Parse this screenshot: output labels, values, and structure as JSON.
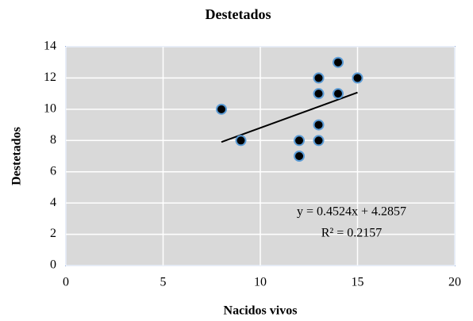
{
  "chart_data": {
    "type": "scatter",
    "title": "Destetados",
    "x_label": "Nacidos vivos",
    "y_label": "Destetados",
    "x": [
      8,
      9,
      12,
      12,
      13,
      13,
      13,
      13,
      14,
      14,
      15
    ],
    "y": [
      10,
      8,
      8,
      7,
      12,
      11,
      9,
      8,
      13,
      11,
      12
    ],
    "color": "#000000",
    "edge_color": "#5b9bd5",
    "xlim": [
      0,
      20
    ],
    "xticks": [
      0,
      5,
      10,
      15,
      20
    ],
    "ylim": [
      0,
      14
    ],
    "yticks": [
      0,
      2,
      4,
      6,
      8,
      10,
      12,
      14
    ],
    "grid": true,
    "trendline": {
      "slope": 0.4524,
      "intercept": 4.2857,
      "r2": 0.2157,
      "label": "y = 0.4524x + 4.2857",
      "r2_label": "R² = 0.2157"
    }
  }
}
